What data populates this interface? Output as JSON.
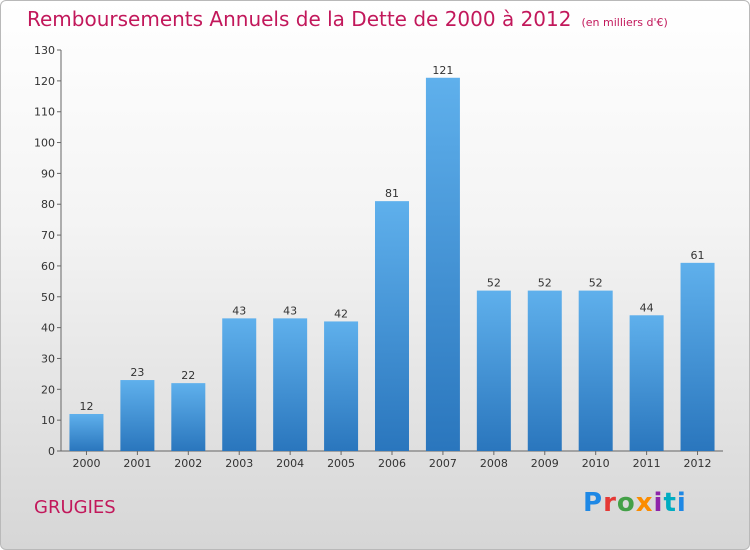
{
  "title": "Remboursements Annuels de la Dette de 2000 à 2012",
  "unit": "(en milliers d'€)",
  "commune": "GRUGIES",
  "logo": "Proxiti",
  "chart_data": {
    "type": "bar",
    "categories": [
      "2000",
      "2001",
      "2002",
      "2003",
      "2004",
      "2005",
      "2006",
      "2007",
      "2008",
      "2009",
      "2010",
      "2011",
      "2012"
    ],
    "values": [
      12,
      23,
      22,
      43,
      43,
      42,
      81,
      121,
      52,
      52,
      52,
      44,
      61
    ],
    "ylim": [
      0,
      130
    ],
    "yticks": [
      0,
      10,
      20,
      30,
      40,
      50,
      60,
      70,
      80,
      90,
      100,
      110,
      120,
      130
    ],
    "grid": false,
    "bar_color": "#4c9fe0"
  }
}
